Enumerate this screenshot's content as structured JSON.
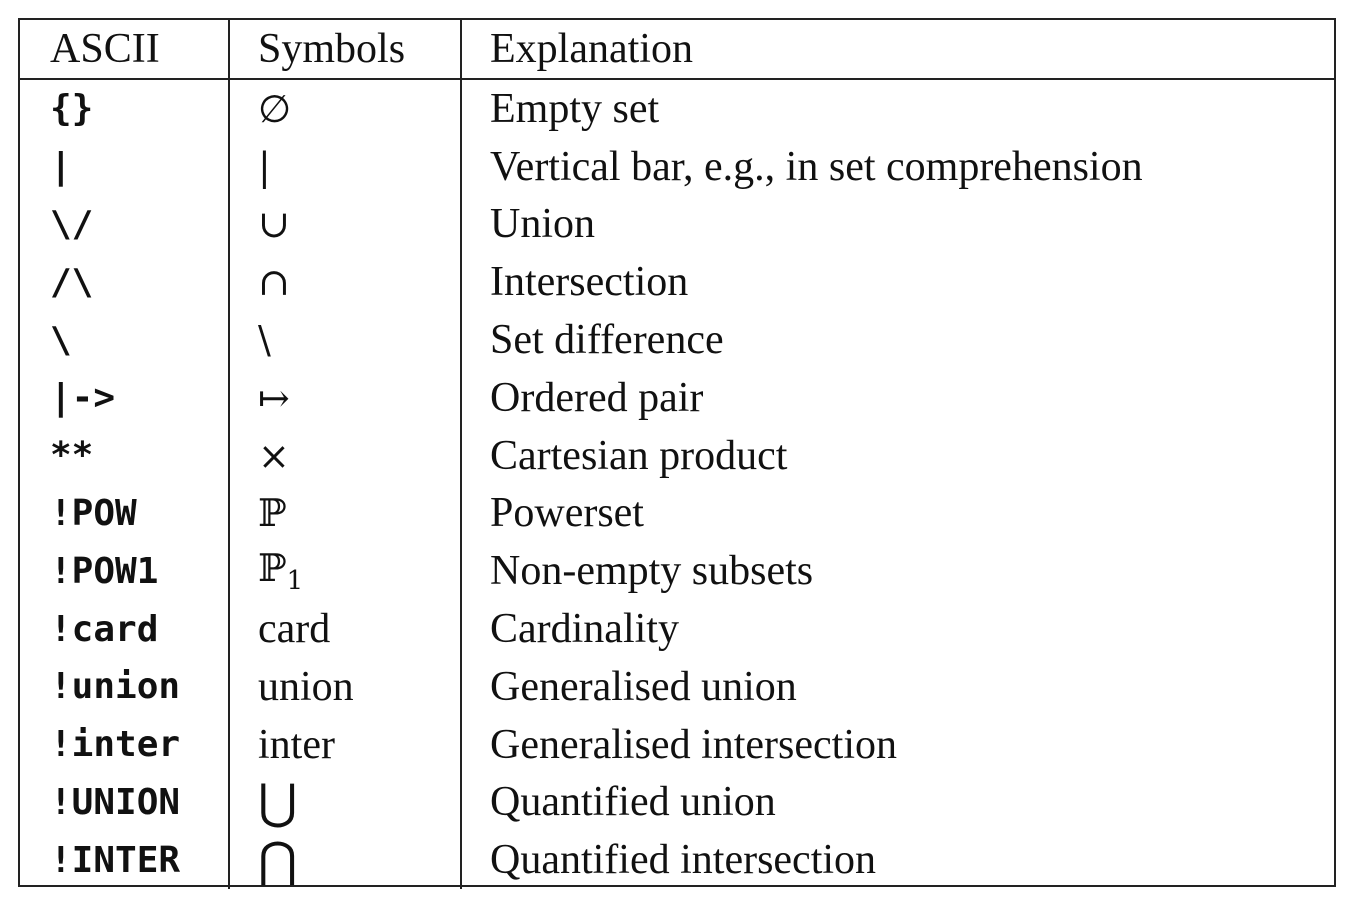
{
  "table": {
    "headers": {
      "ascii": "ASCII",
      "symbols": "Symbols",
      "explanation": "Explanation"
    },
    "rows": [
      {
        "ascii": "{}",
        "symbol": "∅",
        "symbol_sub": "",
        "explanation": "Empty set"
      },
      {
        "ascii": "|",
        "symbol": "|",
        "symbol_sub": "",
        "explanation": "Vertical bar, e.g., in set comprehension"
      },
      {
        "ascii": "\\/",
        "symbol": "∪",
        "symbol_sub": "",
        "explanation": "Union"
      },
      {
        "ascii": "/\\",
        "symbol": "∩",
        "symbol_sub": "",
        "explanation": "Intersection"
      },
      {
        "ascii": "\\",
        "symbol": "\\",
        "symbol_sub": "",
        "explanation": "Set difference"
      },
      {
        "ascii": "|->",
        "symbol": "↦",
        "symbol_sub": "",
        "explanation": "Ordered pair"
      },
      {
        "ascii": "**",
        "symbol": "×",
        "symbol_sub": "",
        "explanation": "Cartesian product"
      },
      {
        "ascii": "!POW",
        "symbol": "ℙ",
        "symbol_sub": "",
        "explanation": "Powerset"
      },
      {
        "ascii": "!POW1",
        "symbol": "ℙ",
        "symbol_sub": "1",
        "explanation": "Non-empty subsets"
      },
      {
        "ascii": "!card",
        "symbol": "card",
        "symbol_sub": "",
        "explanation": "Cardinality"
      },
      {
        "ascii": "!union",
        "symbol": "union",
        "symbol_sub": "",
        "explanation": "Generalised union"
      },
      {
        "ascii": "!inter",
        "symbol": "inter",
        "symbol_sub": "",
        "explanation": "Generalised intersection"
      },
      {
        "ascii": "!UNION",
        "symbol": "⋃",
        "symbol_sub": "",
        "explanation": "Quantified union"
      },
      {
        "ascii": "!INTER",
        "symbol": "⋂",
        "symbol_sub": "",
        "explanation": "Quantified intersection"
      }
    ]
  }
}
